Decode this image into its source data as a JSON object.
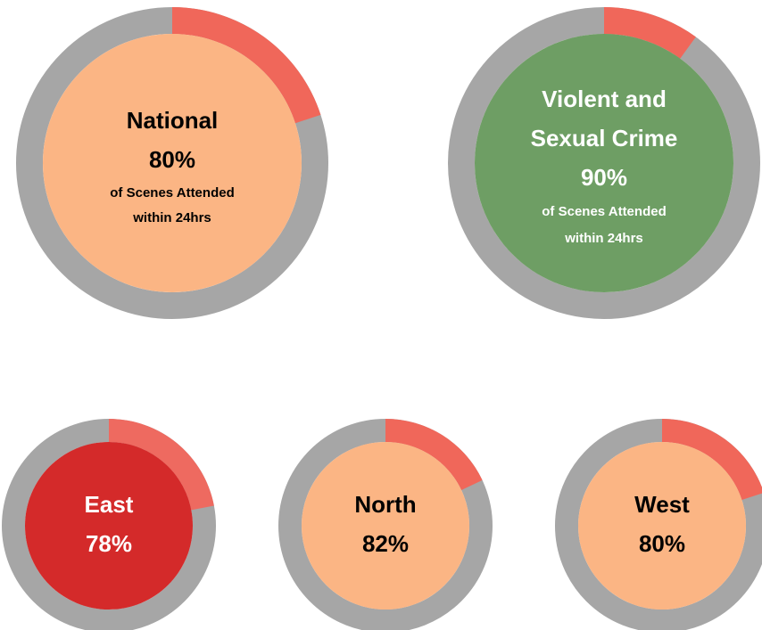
{
  "chart_data": [
    {
      "type": "donut",
      "title": [
        "National"
      ],
      "values": [
        80
      ],
      "value_labels": [
        "80%"
      ],
      "subtitle": [
        "of Scenes Attended",
        "within 24hrs"
      ],
      "ylim": [
        0,
        100
      ],
      "color": "#f0675a",
      "ring_color": "#a6a6a6",
      "fill": "#fbb584",
      "text_color": "#000000"
    },
    {
      "type": "donut",
      "title": [
        "Violent and",
        "Sexual Crime"
      ],
      "values": [
        90
      ],
      "value_labels": [
        "90%"
      ],
      "subtitle": [
        "of Scenes Attended",
        "within 24hrs"
      ],
      "ylim": [
        0,
        100
      ],
      "color": "#f0675a",
      "ring_color": "#a6a6a6",
      "fill": "#6e9e64",
      "text_color": "#ffffff"
    },
    {
      "type": "donut",
      "title": [
        "East"
      ],
      "values": [
        78
      ],
      "value_labels": [
        "78%"
      ],
      "ylim": [
        0,
        100
      ],
      "color": "#ee6a60",
      "ring_color": "#a6a6a6",
      "fill": "#d42a2a",
      "text_color": "#ffffff"
    },
    {
      "type": "donut",
      "title": [
        "North"
      ],
      "values": [
        82
      ],
      "value_labels": [
        "82%"
      ],
      "ylim": [
        0,
        100
      ],
      "color": "#f0675a",
      "ring_color": "#a6a6a6",
      "fill": "#fbb584",
      "text_color": "#000000"
    },
    {
      "type": "donut",
      "title": [
        "West"
      ],
      "values": [
        80
      ],
      "value_labels": [
        "80%"
      ],
      "ylim": [
        0,
        100
      ],
      "color": "#f0675a",
      "ring_color": "#a6a6a6",
      "fill": "#fbb584",
      "text_color": "#000000"
    }
  ]
}
